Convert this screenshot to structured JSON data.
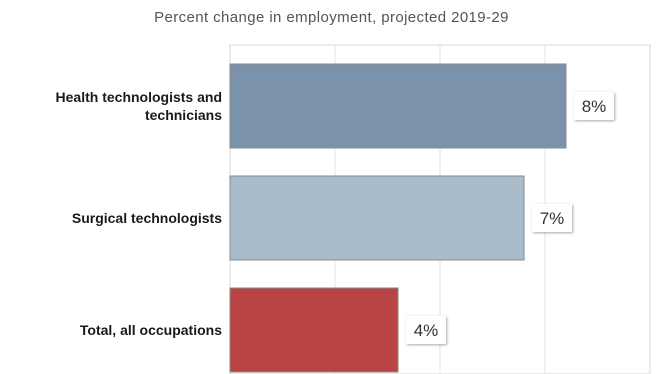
{
  "chart_data": {
    "type": "bar",
    "orientation": "horizontal",
    "title": "Percent change in employment, projected 2019-29",
    "xlabel": "",
    "ylabel": "",
    "categories": [
      [
        "Health technologists and",
        "technicians"
      ],
      [
        "Surgical technologists"
      ],
      [
        "Total, all occupations"
      ]
    ],
    "values": [
      8,
      7,
      4
    ],
    "data_labels": [
      "8%",
      "7%",
      "4%"
    ],
    "colors": [
      "#7a93aa",
      "#a9bccb",
      "#b94444"
    ],
    "xlim": [
      0,
      10
    ],
    "grid": true,
    "legend": "none"
  }
}
